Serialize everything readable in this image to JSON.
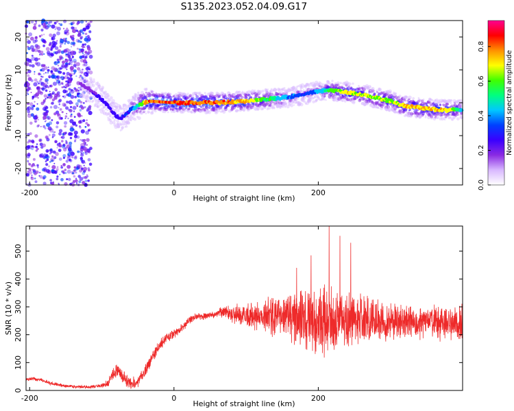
{
  "figure_title": "S135.2023.052.04.09.G17",
  "colors": {
    "snr_line": "#ee2a2a",
    "frame": "#000000",
    "colormap": [
      "#ffffff",
      "#d8b8ff",
      "#8a2be2",
      "#3a00ff",
      "#0040ff",
      "#00c8ff",
      "#00ff80",
      "#40ff00",
      "#ffff00",
      "#ff9000",
      "#ff0000",
      "#ff0090"
    ]
  },
  "chart_data": [
    {
      "type": "heatmap",
      "xlabel": "Height of straight line (km)",
      "ylabel": "Frequency (Hz)",
      "xlim": [
        -205,
        400
      ],
      "ylim": [
        -25,
        25
      ],
      "x_ticks": [
        -200,
        0,
        200
      ],
      "y_ticks": [
        -20,
        -10,
        0,
        10,
        20
      ],
      "ridge": {
        "x": [
          -130,
          -110,
          -95,
          -85,
          -75,
          -68,
          -60,
          -50,
          -42,
          -35,
          0,
          60,
          100,
          150,
          180,
          200,
          215,
          240,
          260,
          300,
          320,
          340,
          360,
          380,
          400
        ],
        "y": [
          6,
          3,
          0,
          -3,
          -5,
          -4,
          -2,
          -1,
          0,
          0.5,
          0,
          0,
          0.5,
          1.5,
          2.5,
          3.5,
          3.8,
          3.2,
          2.5,
          0.5,
          -1,
          -1.5,
          -2,
          -2.3,
          -2
        ],
        "amplitude": [
          0.2,
          0.25,
          0.3,
          0.25,
          0.3,
          0.35,
          0.35,
          0.55,
          0.75,
          0.9,
          0.95,
          0.9,
          0.85,
          0.5,
          0.35,
          0.45,
          0.65,
          0.8,
          0.75,
          0.7,
          0.8,
          0.85,
          0.85,
          0.8,
          0.5
        ]
      },
      "colorbar": {
        "label": "Normalized spectral amplitude",
        "range": [
          0,
          0.95
        ],
        "ticks": [
          "0.0",
          "0.2",
          "0.4",
          "0.6",
          "0.8"
        ]
      }
    },
    {
      "type": "line",
      "xlabel": "Height of straight line (km)",
      "ylabel": "SNR (10 * v/v)",
      "xlim": [
        -205,
        400
      ],
      "ylim": [
        0,
        590
      ],
      "x_ticks": [
        -200,
        0,
        200
      ],
      "y_ticks": [
        0,
        100,
        200,
        300,
        400,
        500
      ],
      "series": [
        {
          "mean_x": [
            -205,
            -195,
            -185,
            -170,
            -150,
            -130,
            -110,
            -95,
            -90,
            -85,
            -80,
            -75,
            -70,
            -65,
            -60,
            -50,
            -40,
            -30,
            -20,
            -10,
            0,
            10,
            20,
            30,
            50,
            60,
            70,
            80,
            100,
            150,
            200,
            250,
            300,
            350,
            400
          ],
          "mean_y": [
            40,
            42,
            38,
            25,
            15,
            12,
            14,
            20,
            30,
            55,
            75,
            65,
            45,
            35,
            25,
            30,
            70,
            120,
            160,
            190,
            200,
            220,
            250,
            265,
            270,
            275,
            285,
            275,
            270,
            265,
            255,
            250,
            245,
            245,
            240
          ],
          "spread_x": [
            -205,
            -100,
            -80,
            -60,
            -40,
            -20,
            0,
            30,
            60,
            80,
            120,
            160,
            190,
            210,
            230,
            260,
            290,
            330,
            370,
            400
          ],
          "spread_y": [
            6,
            6,
            25,
            20,
            20,
            22,
            18,
            12,
            12,
            30,
            55,
            85,
            120,
            120,
            100,
            90,
            70,
            55,
            60,
            65
          ],
          "peaks_x": [
            215,
            230,
            245,
            190,
            170
          ],
          "peaks_y": [
            590,
            555,
            530,
            485,
            440
          ]
        }
      ]
    }
  ]
}
